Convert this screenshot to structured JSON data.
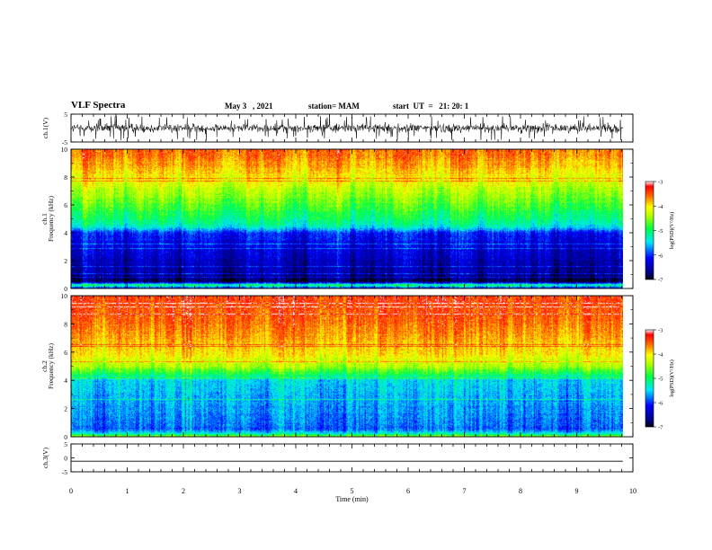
{
  "header": {
    "title": "VLF Spectra",
    "date": "May 3   , 2021",
    "station": "station= MAM",
    "start": "start  UT  =   21: 20: 1"
  },
  "chart_data": [
    {
      "type": "line",
      "panel": "ch1-waveform",
      "ylabel": "ch.1(V)",
      "ylim": [
        -5,
        5
      ],
      "ytick_labels": [
        "5",
        "-5"
      ],
      "xlim": [
        0,
        10
      ],
      "x_data_extent": [
        0,
        9.82
      ],
      "series_level": {
        "center": 0,
        "amplitude": 2.6,
        "style": "noisy"
      },
      "color": "#000000"
    },
    {
      "type": "heatmap",
      "panel": "ch1-spectrogram",
      "ylabel": "ch.1\nFrequency (kHz)",
      "ylim": [
        0,
        10
      ],
      "ytick_labels": [
        "0",
        "2",
        "4",
        "6",
        "8",
        "10"
      ],
      "xlim": [
        0,
        10
      ],
      "x_data_extent": [
        0,
        9.82
      ],
      "colorbar": {
        "label": "log(PSD)(V²/Hz)",
        "range": [
          -7,
          -3
        ],
        "tick_labels": [
          "-3",
          "-4",
          "-5",
          "-6",
          "-7"
        ]
      },
      "freq_profile_khz": [
        0,
        0.25,
        0.5,
        1,
        2,
        3,
        4,
        4.4,
        5,
        6,
        7,
        8,
        9,
        10
      ],
      "log_psd_profile": [
        -6.2,
        -5.0,
        -6.9,
        -6.6,
        -6.5,
        -6.3,
        -6.1,
        -5.4,
        -5.1,
        -4.75,
        -4.4,
        -4.1,
        -3.8,
        -3.6
      ]
    },
    {
      "type": "heatmap",
      "panel": "ch2-spectrogram",
      "ylabel": "ch.2\nFrequency (kHz)",
      "ylim": [
        0,
        10
      ],
      "ytick_labels": [
        "0",
        "2",
        "4",
        "6",
        "8",
        "10"
      ],
      "xlim": [
        0,
        10
      ],
      "x_data_extent": [
        0,
        9.82
      ],
      "colorbar": {
        "label": "log(PSD)(V²/Hz)",
        "range": [
          -7,
          -3
        ],
        "tick_labels": [
          "-3",
          "-4",
          "-5",
          "-6",
          "-7"
        ]
      },
      "freq_profile_khz": [
        0,
        0.2,
        0.5,
        1,
        2,
        3,
        4,
        4.5,
        5,
        6,
        7,
        8,
        9,
        10
      ],
      "log_psd_profile": [
        -4.4,
        -5.3,
        -5.9,
        -5.8,
        -5.7,
        -5.6,
        -5.5,
        -4.9,
        -4.4,
        -4.0,
        -3.8,
        -3.6,
        -3.5,
        -3.4
      ]
    },
    {
      "type": "line",
      "panel": "ch3-waveform",
      "ylabel": "ch.3(V)",
      "ylim": [
        -5,
        5
      ],
      "ytick_labels": [
        "5",
        "0",
        "-5"
      ],
      "xlim": [
        0,
        10
      ],
      "x_data_extent": [
        0,
        9.82
      ],
      "series_level": {
        "center": -1.2,
        "amplitude": 0,
        "style": "flat"
      },
      "color": "#000000"
    }
  ],
  "xaxis": {
    "label": "Time  (min)",
    "range": [
      0,
      10
    ],
    "tick_labels": [
      "0",
      "1",
      "2",
      "3",
      "4",
      "5",
      "6",
      "7",
      "8",
      "9",
      "10"
    ]
  }
}
